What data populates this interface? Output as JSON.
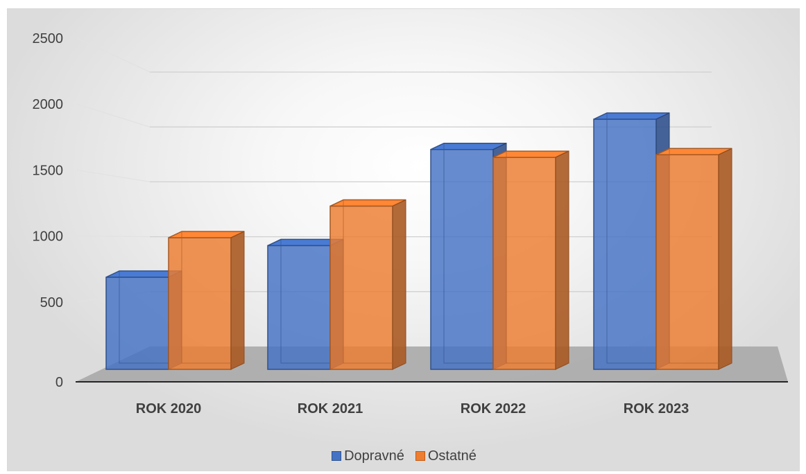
{
  "chart_data": {
    "type": "bar",
    "style": "3d-clustered-column",
    "categories": [
      "ROK 2020",
      "ROK 2021",
      "ROK 2022",
      "ROK 2023"
    ],
    "series": [
      {
        "name": "Dopravné",
        "values": [
          700,
          940,
          1670,
          1900
        ],
        "color": "#4472c4"
      },
      {
        "name": "Ostatné",
        "values": [
          1000,
          1240,
          1610,
          1630
        ],
        "color": "#ed7d31"
      }
    ],
    "yticks": [
      "0",
      "500",
      "1000",
      "1500",
      "2000",
      "2500"
    ],
    "ylim": [
      0,
      2500
    ],
    "grid": true,
    "legend": "bottom"
  }
}
